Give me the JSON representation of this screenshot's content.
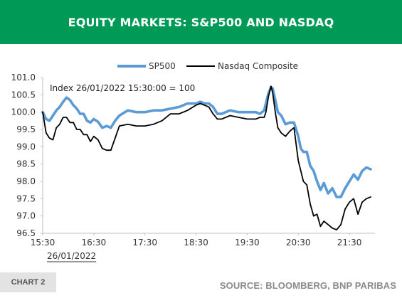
{
  "header": {
    "title": "EQUITY MARKETS: S&P500 AND NASDAQ"
  },
  "footer": {
    "chart_label": "CHART 2",
    "source": "SOURCE: BLOOMBERG, BNP PARIBAS"
  },
  "colors": {
    "banner": "#009a57",
    "sp500": "#5b9bd5",
    "nasdaq": "#000000"
  },
  "chart_data": {
    "type": "line",
    "annotation": "Index 26/01/2022 15:30:00 = 100",
    "date_label": "26/01/2022",
    "legend_position": "top-center",
    "grid": false,
    "x_ticks": [
      "15:30",
      "16:30",
      "17:30",
      "18:30",
      "19:30",
      "20:30",
      "21:30"
    ],
    "xlim": [
      "15:30",
      "22:00"
    ],
    "y_ticks": [
      "101.0",
      "100.5",
      "100.0",
      "99.5",
      "99.0",
      "98.5",
      "98.0",
      "97.5",
      "97.0",
      "96.5"
    ],
    "ylim": [
      96.5,
      101.0
    ],
    "series": [
      {
        "name": "SP500",
        "x": [
          "15:30",
          "15:34",
          "15:38",
          "15:42",
          "15:46",
          "15:50",
          "15:54",
          "15:58",
          "16:02",
          "16:06",
          "16:10",
          "16:14",
          "16:18",
          "16:22",
          "16:26",
          "16:30",
          "16:35",
          "16:40",
          "16:45",
          "16:50",
          "16:55",
          "17:00",
          "17:10",
          "17:20",
          "17:30",
          "17:40",
          "17:50",
          "18:00",
          "18:10",
          "18:20",
          "18:30",
          "18:35",
          "18:40",
          "18:45",
          "18:50",
          "18:55",
          "19:00",
          "19:10",
          "19:20",
          "19:30",
          "19:40",
          "19:45",
          "19:50",
          "19:52",
          "19:55",
          "19:58",
          "20:00",
          "20:03",
          "20:06",
          "20:10",
          "20:15",
          "20:20",
          "20:25",
          "20:30",
          "20:33",
          "20:36",
          "20:40",
          "20:44",
          "20:48",
          "20:52",
          "20:56",
          "21:00",
          "21:05",
          "21:10",
          "21:15",
          "21:20",
          "21:25",
          "21:30",
          "21:35",
          "21:40",
          "21:45",
          "21:50",
          "21:55"
        ],
        "values": [
          100.0,
          99.8,
          99.75,
          99.9,
          100.05,
          100.15,
          100.3,
          100.42,
          100.35,
          100.2,
          100.1,
          99.95,
          99.95,
          99.75,
          99.7,
          99.8,
          99.72,
          99.55,
          99.6,
          99.55,
          99.75,
          99.9,
          100.05,
          100.0,
          100.0,
          100.05,
          100.05,
          100.1,
          100.15,
          100.25,
          100.25,
          100.3,
          100.25,
          100.25,
          100.15,
          99.95,
          99.95,
          100.05,
          100.0,
          100.0,
          100.0,
          99.95,
          100.05,
          100.25,
          100.55,
          100.72,
          100.68,
          100.35,
          100.0,
          99.9,
          99.65,
          99.7,
          99.7,
          99.3,
          98.95,
          98.85,
          98.85,
          98.45,
          98.3,
          98.0,
          97.75,
          97.95,
          97.65,
          97.8,
          97.55,
          97.55,
          97.8,
          98.0,
          98.2,
          98.05,
          98.3,
          98.4,
          98.35
        ]
      },
      {
        "name": "Nasdaq Composite",
        "x": [
          "15:30",
          "15:34",
          "15:38",
          "15:42",
          "15:46",
          "15:50",
          "15:54",
          "15:58",
          "16:02",
          "16:06",
          "16:10",
          "16:14",
          "16:18",
          "16:22",
          "16:26",
          "16:30",
          "16:35",
          "16:40",
          "16:45",
          "16:50",
          "16:55",
          "17:00",
          "17:10",
          "17:20",
          "17:30",
          "17:40",
          "17:50",
          "18:00",
          "18:10",
          "18:20",
          "18:30",
          "18:35",
          "18:40",
          "18:45",
          "18:50",
          "18:55",
          "19:00",
          "19:10",
          "19:20",
          "19:30",
          "19:40",
          "19:45",
          "19:50",
          "19:52",
          "19:55",
          "19:58",
          "20:00",
          "20:03",
          "20:06",
          "20:10",
          "20:15",
          "20:20",
          "20:25",
          "20:30",
          "20:33",
          "20:36",
          "20:40",
          "20:44",
          "20:48",
          "20:52",
          "20:56",
          "21:00",
          "21:05",
          "21:10",
          "21:15",
          "21:20",
          "21:25",
          "21:30",
          "21:35",
          "21:40",
          "21:45",
          "21:50",
          "21:55"
        ],
        "values": [
          100.0,
          99.4,
          99.25,
          99.2,
          99.55,
          99.65,
          99.85,
          99.85,
          99.7,
          99.7,
          99.5,
          99.5,
          99.35,
          99.35,
          99.15,
          99.3,
          99.2,
          98.95,
          98.9,
          98.9,
          99.25,
          99.6,
          99.65,
          99.6,
          99.6,
          99.65,
          99.75,
          99.95,
          99.95,
          100.05,
          100.2,
          100.25,
          100.2,
          100.15,
          99.95,
          99.8,
          99.8,
          99.9,
          99.85,
          99.8,
          99.8,
          99.85,
          99.85,
          100.0,
          100.45,
          100.75,
          100.55,
          100.0,
          99.55,
          99.4,
          99.3,
          99.45,
          99.55,
          98.6,
          98.3,
          98.0,
          97.9,
          97.35,
          97.0,
          97.05,
          96.7,
          96.85,
          96.75,
          96.65,
          96.6,
          96.75,
          97.2,
          97.4,
          97.5,
          97.05,
          97.4,
          97.5,
          97.55
        ]
      }
    ]
  }
}
